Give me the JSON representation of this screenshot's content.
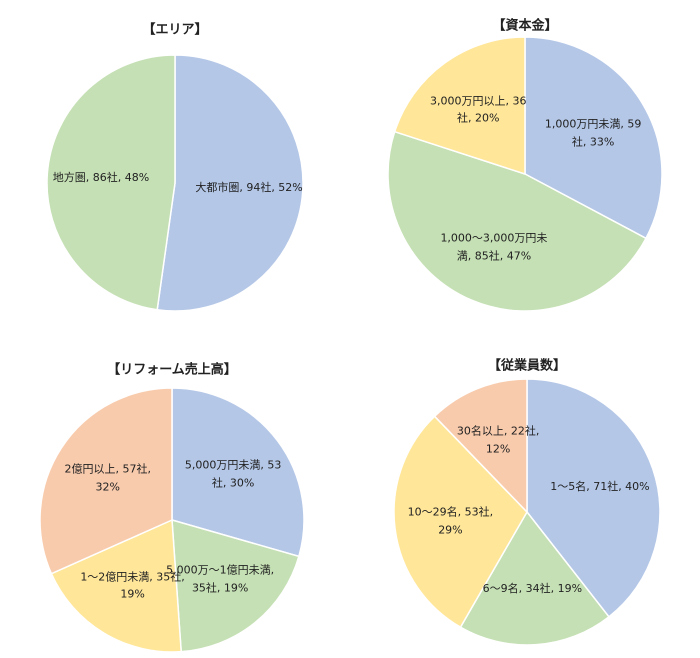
{
  "chart_data": [
    {
      "type": "pie",
      "title": "【エリア】",
      "categories": [
        "大都市圏",
        "地方圏"
      ],
      "values": [
        94,
        86
      ],
      "value_labels": [
        "大都市圏, 94社, 52%",
        "地方圏, 86社, 48%"
      ],
      "colors": [
        "#b4c7e7",
        "#c5e0b4"
      ]
    },
    {
      "type": "pie",
      "title": "【資本金】",
      "categories": [
        "1,000万円未満",
        "1,000～3,000万円未満",
        "3,000万円以上"
      ],
      "values": [
        59,
        85,
        36
      ],
      "value_labels": [
        "1,000万円未満, 59社, 33%",
        "1,000～3,000万円未満, 85社, 47%",
        "3,000万円以上, 36社, 20%"
      ],
      "colors": [
        "#b4c7e7",
        "#c5e0b4",
        "#ffe699"
      ]
    },
    {
      "type": "pie",
      "title": "【リフォーム売上高】",
      "categories": [
        "5,000万円未満",
        "5,000万～1億円未満",
        "1～2億円未満",
        "2億円以上"
      ],
      "values": [
        53,
        35,
        35,
        57
      ],
      "value_labels": [
        "5,000万円未満, 53社, 30%",
        "5,000万～1億円未満, 35社, 19%",
        "1～2億円未満, 35社, 19%",
        "2億円以上, 57社, 32%"
      ],
      "colors": [
        "#b4c7e7",
        "#c5e0b4",
        "#ffe699",
        "#f8cbad"
      ]
    },
    {
      "type": "pie",
      "title": "【従業員数】",
      "categories": [
        "1～5名",
        "6～9名",
        "10～29名",
        "30名以上"
      ],
      "values": [
        71,
        34,
        53,
        22
      ],
      "value_labels": [
        "1～5名, 71社, 40%",
        "6～9名, 34社, 19%",
        "10～29名, 53社, 29%",
        "30名以上, 22社, 12%"
      ],
      "colors": [
        "#b4c7e7",
        "#c5e0b4",
        "#ffe699",
        "#f8cbad"
      ]
    }
  ]
}
